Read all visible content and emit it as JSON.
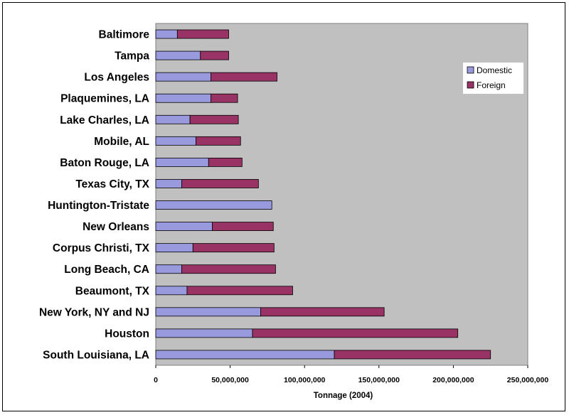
{
  "chart_data": {
    "type": "bar",
    "orientation": "horizontal",
    "stacked": true,
    "categories": [
      "South Louisiana, LA",
      "Houston",
      "New York, NY and NJ",
      "Beaumont, TX",
      "Long Beach, CA",
      "Corpus Christi, TX",
      "New Orleans",
      "Huntington-Tristate",
      "Texas City, TX",
      "Baton Rouge, LA",
      "Mobile, AL",
      "Lake Charles, LA",
      "Plaquemines, LA",
      "Los Angeles",
      "Tampa",
      "Baltimore"
    ],
    "series": [
      {
        "name": "Domestic",
        "color": "#9999dd",
        "values": [
          120000000,
          65000000,
          70500000,
          21000000,
          17500000,
          25000000,
          38000000,
          78000000,
          17500000,
          35500000,
          27000000,
          23000000,
          37000000,
          37000000,
          30000000,
          14500000
        ]
      },
      {
        "name": "Foreign",
        "color": "#993366",
        "values": [
          105000000,
          138000000,
          83000000,
          71000000,
          63000000,
          54500000,
          41000000,
          0,
          51500000,
          22500000,
          30000000,
          32500000,
          18000000,
          44500000,
          19000000,
          34500000
        ]
      }
    ],
    "xlabel": "Tonnage (2004)",
    "ylabel": "",
    "xlim": [
      0,
      250000000
    ],
    "xticks": [
      0,
      50000000,
      100000000,
      150000000,
      200000000,
      250000000
    ],
    "xtick_labels": [
      "0",
      "50,000,000",
      "100,000,000",
      "150,000,000",
      "200,000,000",
      "250,000,000"
    ],
    "grid": false,
    "plot_background": "#c0c0c0",
    "legend_position": "right"
  }
}
